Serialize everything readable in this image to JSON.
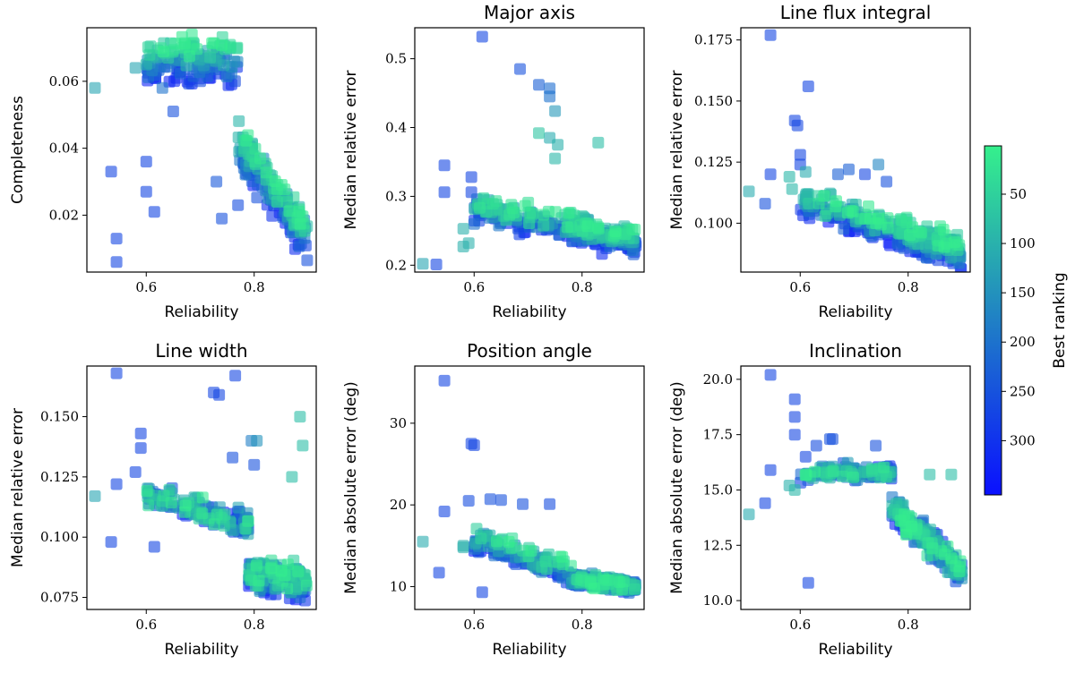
{
  "colorbar": {
    "label": "Best ranking",
    "ticks": [
      50,
      100,
      150,
      200,
      250,
      300
    ],
    "range": [
      1,
      355
    ],
    "color_low": "#35f08c",
    "color_high": "#0a10ff"
  },
  "chart_data": [
    {
      "id": "completeness",
      "type": "scatter",
      "title": "",
      "xlabel": "Reliability",
      "ylabel": "Completeness",
      "xlim": [
        0.49,
        0.915
      ],
      "ylim": [
        0.003,
        0.076
      ],
      "xticks": [
        0.6,
        0.8
      ],
      "yticks": [
        0.02,
        0.04,
        0.06
      ],
      "xtick_labels": [
        "0.6",
        "0.8"
      ],
      "ytick_labels": [
        "0.02",
        "0.04",
        "0.06"
      ],
      "trend": {
        "kind": "completeness"
      },
      "outliers": [
        [
          0.505,
          0.058,
          120
        ],
        [
          0.535,
          0.033,
          270
        ],
        [
          0.545,
          0.013,
          270
        ],
        [
          0.545,
          0.006,
          270
        ],
        [
          0.6,
          0.027,
          270
        ],
        [
          0.6,
          0.036,
          270
        ],
        [
          0.615,
          0.021,
          270
        ],
        [
          0.58,
          0.064,
          120
        ],
        [
          0.6,
          0.065,
          90
        ],
        [
          0.63,
          0.058,
          200
        ],
        [
          0.65,
          0.051,
          250
        ],
        [
          0.7,
          0.06,
          260
        ],
        [
          0.73,
          0.03,
          240
        ],
        [
          0.74,
          0.019,
          250
        ],
        [
          0.77,
          0.023,
          260
        ]
      ]
    },
    {
      "id": "major-axis",
      "type": "scatter",
      "title": "Major axis",
      "xlabel": "Reliability",
      "ylabel": "Median relative error",
      "xlim": [
        0.49,
        0.915
      ],
      "ylim": [
        0.19,
        0.545
      ],
      "xticks": [
        0.6,
        0.8
      ],
      "yticks": [
        0.2,
        0.3,
        0.4,
        0.5
      ],
      "xtick_labels": [
        "0.6",
        "0.8"
      ],
      "ytick_labels": [
        "0.2",
        "0.3",
        "0.4",
        "0.5"
      ],
      "trend": {
        "kind": "major"
      },
      "outliers": [
        [
          0.505,
          0.202,
          120
        ],
        [
          0.53,
          0.201,
          270
        ],
        [
          0.545,
          0.345,
          270
        ],
        [
          0.545,
          0.306,
          270
        ],
        [
          0.595,
          0.328,
          270
        ],
        [
          0.595,
          0.306,
          270
        ],
        [
          0.615,
          0.532,
          270
        ],
        [
          0.685,
          0.485,
          250
        ],
        [
          0.72,
          0.462,
          230
        ],
        [
          0.74,
          0.457,
          210
        ],
        [
          0.74,
          0.445,
          200
        ],
        [
          0.75,
          0.424,
          140
        ],
        [
          0.755,
          0.375,
          100
        ],
        [
          0.75,
          0.355,
          90
        ],
        [
          0.74,
          0.385,
          110
        ],
        [
          0.72,
          0.392,
          70
        ],
        [
          0.83,
          0.378,
          80
        ],
        [
          0.6,
          0.26,
          200
        ],
        [
          0.58,
          0.253,
          100
        ],
        [
          0.58,
          0.227,
          100
        ],
        [
          0.59,
          0.232,
          100
        ]
      ]
    },
    {
      "id": "line-flux-integral",
      "type": "scatter",
      "title": "Line flux integral",
      "xlabel": "Reliability",
      "ylabel": "Median relative error",
      "xlim": [
        0.49,
        0.915
      ],
      "ylim": [
        0.08,
        0.18
      ],
      "xticks": [
        0.6,
        0.8
      ],
      "yticks": [
        0.1,
        0.125,
        0.15,
        0.175
      ],
      "xtick_labels": [
        "0.6",
        "0.8"
      ],
      "ytick_labels": [
        "0.100",
        "0.125",
        "0.150",
        "0.175"
      ],
      "trend": {
        "kind": "flux"
      },
      "outliers": [
        [
          0.505,
          0.113,
          110
        ],
        [
          0.535,
          0.108,
          250
        ],
        [
          0.545,
          0.177,
          270
        ],
        [
          0.545,
          0.12,
          270
        ],
        [
          0.59,
          0.142,
          270
        ],
        [
          0.595,
          0.14,
          270
        ],
        [
          0.615,
          0.156,
          270
        ],
        [
          0.6,
          0.128,
          270
        ],
        [
          0.6,
          0.124,
          270
        ],
        [
          0.61,
          0.121,
          110
        ],
        [
          0.58,
          0.119,
          90
        ],
        [
          0.67,
          0.12,
          230
        ],
        [
          0.69,
          0.122,
          230
        ],
        [
          0.72,
          0.12,
          270
        ],
        [
          0.76,
          0.117,
          250
        ],
        [
          0.745,
          0.124,
          170
        ],
        [
          0.585,
          0.114,
          90
        ]
      ]
    },
    {
      "id": "line-width",
      "type": "scatter",
      "title": "Line width",
      "xlabel": "Reliability",
      "ylabel": "Median relative error",
      "xlim": [
        0.49,
        0.915
      ],
      "ylim": [
        0.07,
        0.171
      ],
      "xticks": [
        0.6,
        0.8
      ],
      "yticks": [
        0.075,
        0.1,
        0.125,
        0.15
      ],
      "xtick_labels": [
        "0.6",
        "0.8"
      ],
      "ytick_labels": [
        "0.075",
        "0.100",
        "0.125",
        "0.150"
      ],
      "trend": {
        "kind": "width"
      },
      "outliers": [
        [
          0.505,
          0.117,
          120
        ],
        [
          0.535,
          0.098,
          270
        ],
        [
          0.545,
          0.168,
          270
        ],
        [
          0.545,
          0.122,
          270
        ],
        [
          0.59,
          0.143,
          270
        ],
        [
          0.59,
          0.137,
          270
        ],
        [
          0.58,
          0.127,
          270
        ],
        [
          0.615,
          0.096,
          270
        ],
        [
          0.725,
          0.16,
          270
        ],
        [
          0.735,
          0.159,
          270
        ],
        [
          0.765,
          0.167,
          270
        ],
        [
          0.76,
          0.133,
          250
        ],
        [
          0.795,
          0.14,
          180
        ],
        [
          0.805,
          0.14,
          150
        ],
        [
          0.885,
          0.15,
          80
        ],
        [
          0.89,
          0.138,
          80
        ],
        [
          0.87,
          0.125,
          80
        ],
        [
          0.8,
          0.13,
          250
        ]
      ]
    },
    {
      "id": "position-angle",
      "type": "scatter",
      "title": "Position angle",
      "xlabel": "Reliability",
      "ylabel": "Median absolute error (deg)",
      "xlim": [
        0.49,
        0.915
      ],
      "ylim": [
        7.2,
        37
      ],
      "xticks": [
        0.6,
        0.8
      ],
      "yticks": [
        10,
        20,
        30
      ],
      "xtick_labels": [
        "0.6",
        "0.8"
      ],
      "ytick_labels": [
        "10",
        "20",
        "30"
      ],
      "trend": {
        "kind": "pa"
      },
      "outliers": [
        [
          0.505,
          15.5,
          110
        ],
        [
          0.535,
          11.7,
          270
        ],
        [
          0.545,
          35.2,
          270
        ],
        [
          0.545,
          19.2,
          270
        ],
        [
          0.595,
          27.5,
          270
        ],
        [
          0.6,
          27.3,
          270
        ],
        [
          0.59,
          20.5,
          260
        ],
        [
          0.615,
          9.3,
          270
        ],
        [
          0.63,
          20.7,
          250
        ],
        [
          0.65,
          20.6,
          250
        ],
        [
          0.69,
          20.1,
          250
        ],
        [
          0.74,
          20.1,
          260
        ],
        [
          0.58,
          15.0,
          100
        ],
        [
          0.58,
          14.8,
          100
        ]
      ]
    },
    {
      "id": "inclination",
      "type": "scatter",
      "title": "Inclination",
      "xlabel": "Reliability",
      "ylabel": "Median absolute error (deg)",
      "xlim": [
        0.49,
        0.915
      ],
      "ylim": [
        9.6,
        20.6
      ],
      "xticks": [
        0.6,
        0.8
      ],
      "yticks": [
        10,
        12.5,
        15,
        17.5,
        20
      ],
      "xtick_labels": [
        "0.6",
        "0.8"
      ],
      "ytick_labels": [
        "10.0",
        "12.5",
        "15.0",
        "17.5",
        "20.0"
      ],
      "trend": {
        "kind": "incl"
      },
      "outliers": [
        [
          0.505,
          13.9,
          110
        ],
        [
          0.535,
          14.4,
          270
        ],
        [
          0.545,
          20.2,
          270
        ],
        [
          0.545,
          15.9,
          270
        ],
        [
          0.59,
          19.1,
          270
        ],
        [
          0.59,
          18.3,
          270
        ],
        [
          0.59,
          17.5,
          270
        ],
        [
          0.61,
          16.5,
          270
        ],
        [
          0.615,
          10.8,
          270
        ],
        [
          0.63,
          17.0,
          260
        ],
        [
          0.655,
          17.3,
          250
        ],
        [
          0.66,
          17.3,
          250
        ],
        [
          0.74,
          17.0,
          250
        ],
        [
          0.84,
          15.7,
          80
        ],
        [
          0.88,
          15.7,
          80
        ],
        [
          0.58,
          15.2,
          100
        ],
        [
          0.59,
          15.0,
          90
        ]
      ]
    }
  ]
}
